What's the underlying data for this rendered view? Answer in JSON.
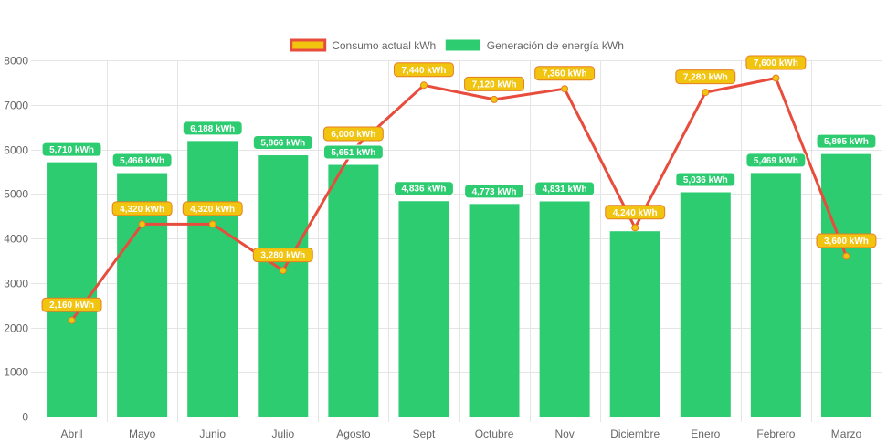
{
  "chart_data": {
    "type": "bar",
    "categories": [
      "Abril",
      "Mayo",
      "Junio",
      "Julio",
      "Agosto",
      "Sept",
      "Octubre",
      "Nov",
      "Diciembre",
      "Enero",
      "Febrero",
      "Marzo"
    ],
    "ylim": [
      0,
      8000
    ],
    "yticks": [
      0,
      1000,
      2000,
      3000,
      4000,
      5000,
      6000,
      7000,
      8000
    ],
    "grid": true,
    "legend_position": "top-center",
    "series": [
      {
        "name": "Consumo actual kWh",
        "type": "line",
        "color": "#e74c3c",
        "fill": "#f1c40f",
        "values": [
          2160,
          4320,
          4320,
          3280,
          6000,
          7440,
          7120,
          7360,
          4240,
          7280,
          7600,
          3600
        ],
        "labels": [
          "2,160 kWh",
          "4,320 kWh",
          "4,320 kWh",
          "3,280 kWh",
          "6,000 kWh",
          "7,440 kWh",
          "7,120 kWh",
          "7,360 kWh",
          "4,240 kWh",
          "7,280 kWh",
          "7,600 kWh",
          "3,600 kWh"
        ]
      },
      {
        "name": "Generación de energía kWh",
        "type": "bar",
        "color": "#2ecc71",
        "values": [
          5710,
          5466,
          6188,
          5866,
          5651,
          4836,
          4773,
          4831,
          4160,
          5036,
          5469,
          5895
        ],
        "labels": [
          "5,710 kWh",
          "5,466 kWh",
          "6,188 kWh",
          "5,866 kWh",
          "5,651 kWh",
          "4,836 kWh",
          "4,773 kWh",
          "4,831 kWh",
          "",
          "5,036 kWh",
          "5,469 kWh",
          "5,895 kWh"
        ]
      }
    ]
  }
}
